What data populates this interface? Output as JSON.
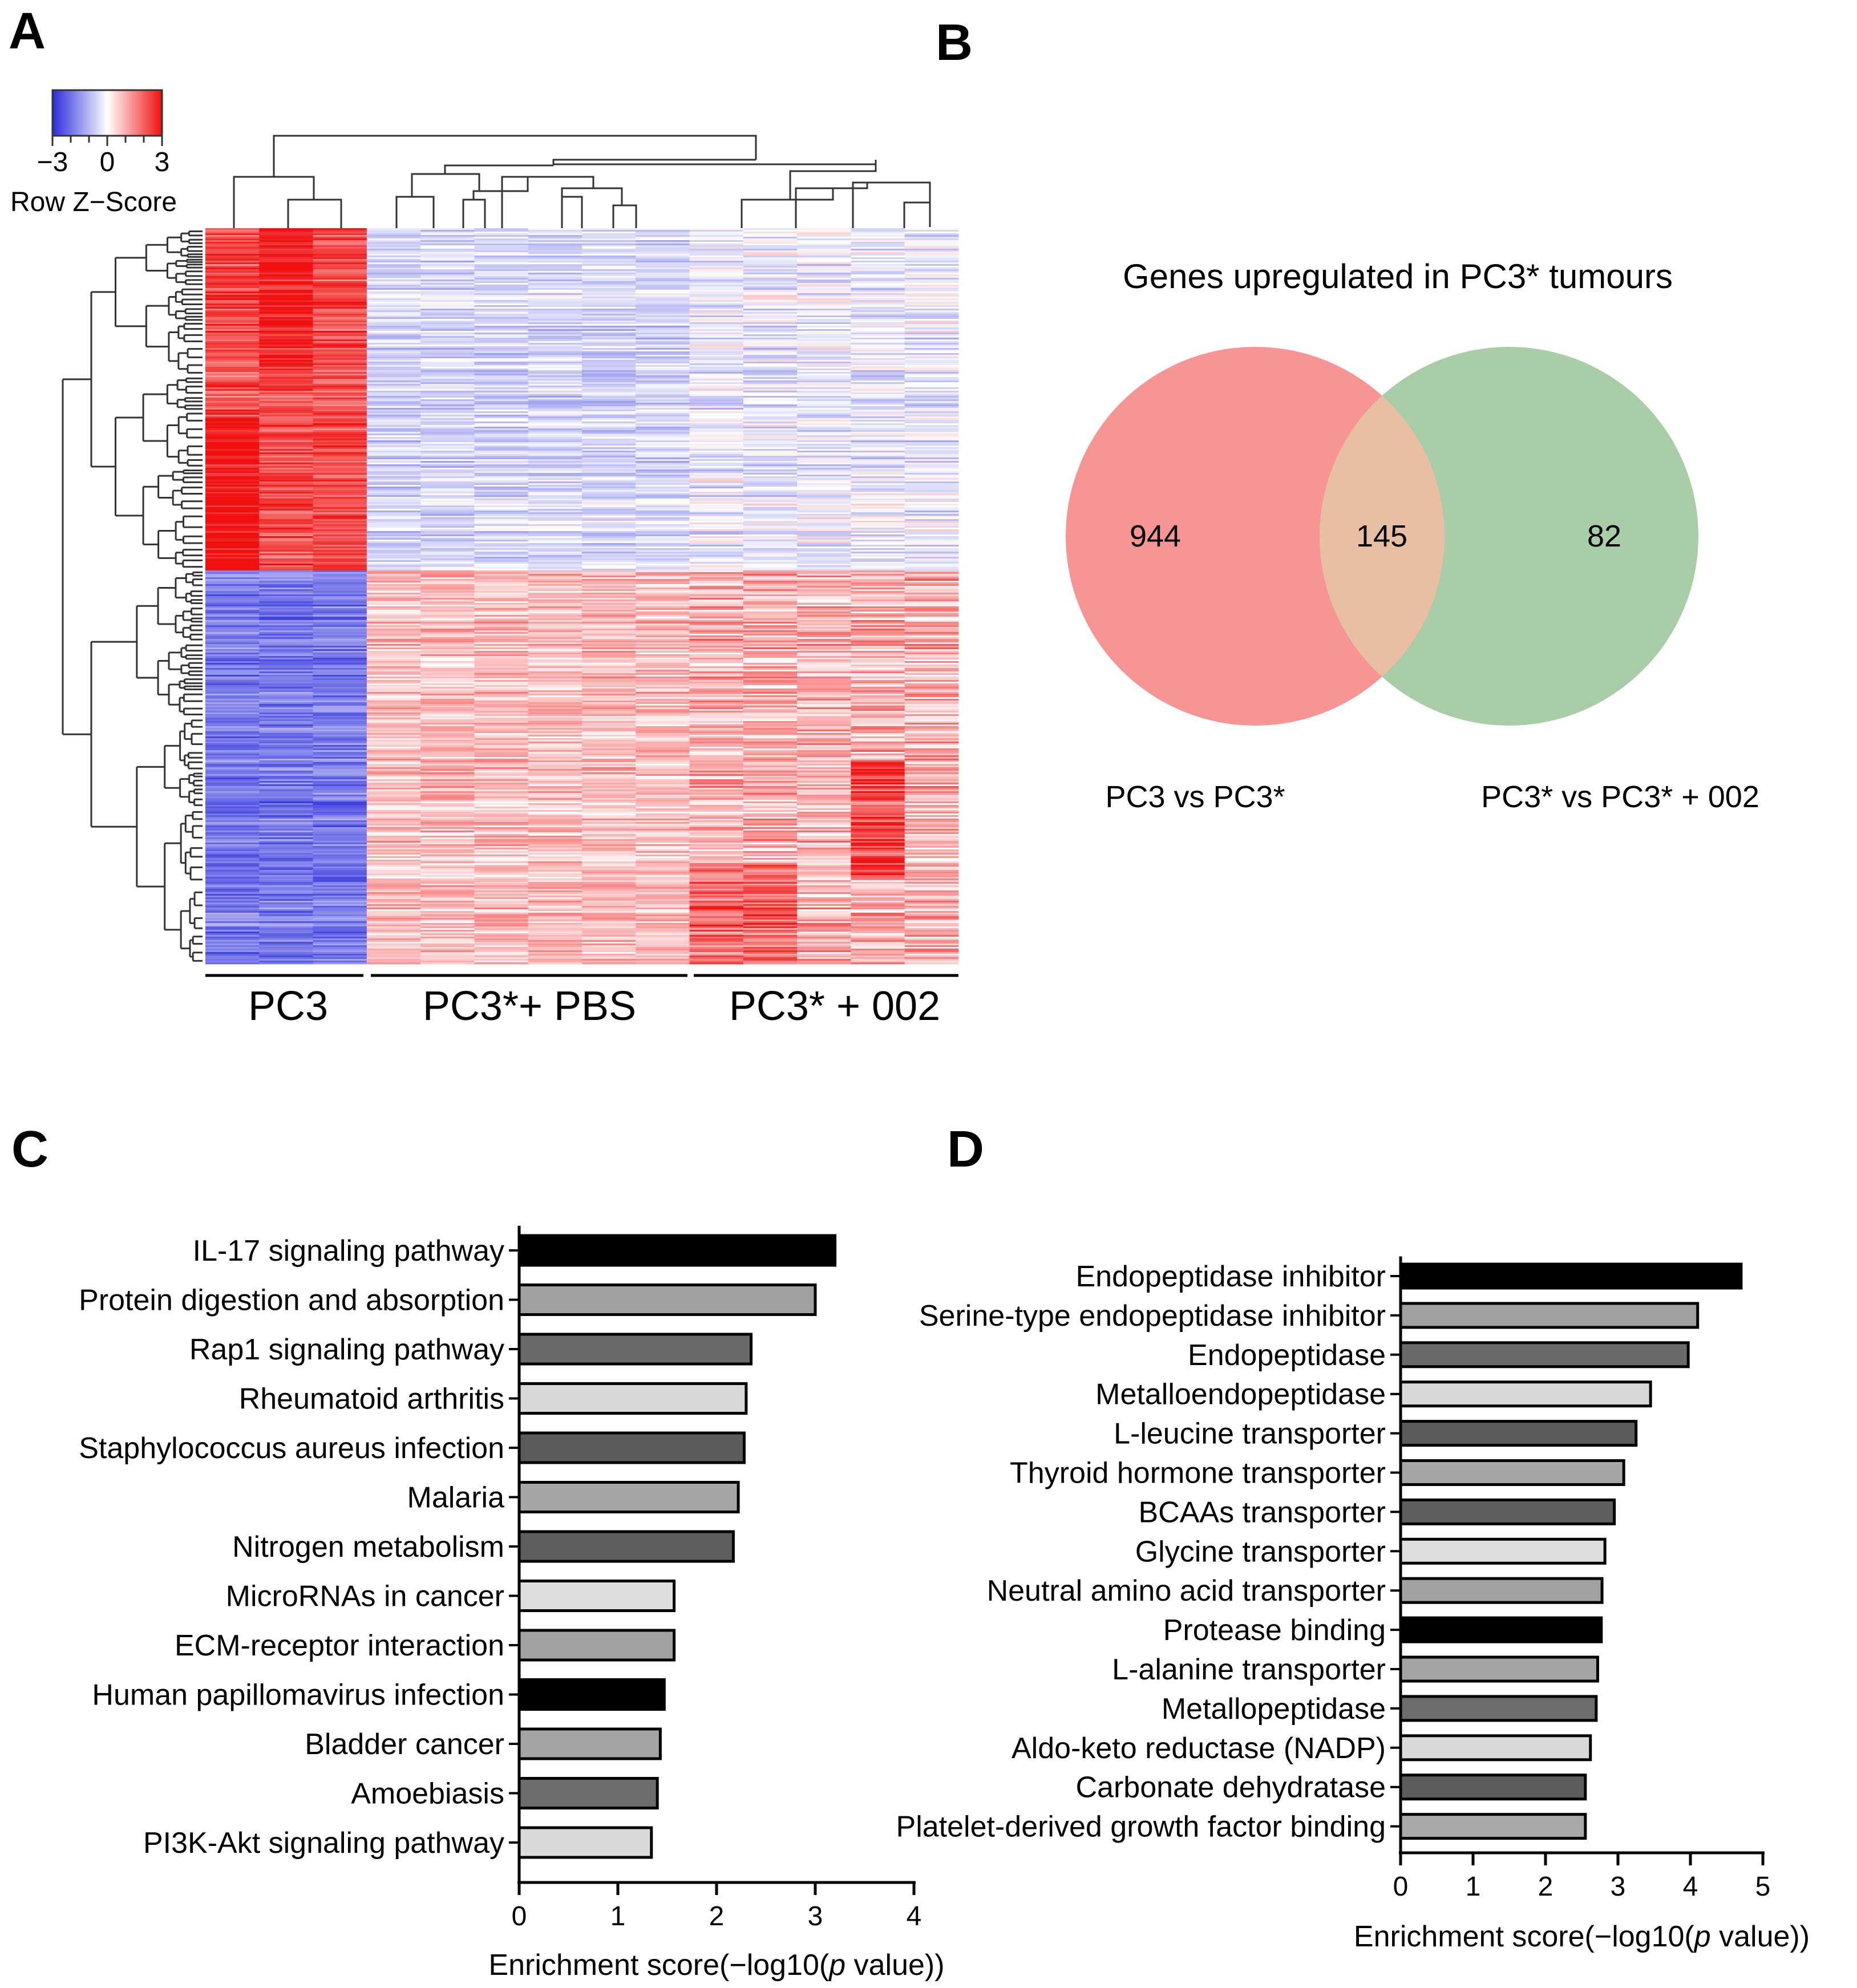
{
  "panels": {
    "a": "A",
    "b": "B",
    "c": "C",
    "d": "D"
  },
  "heatmap": {
    "legend_title": "Row Z−Score",
    "legend_min": "−3",
    "legend_mid": "0",
    "legend_max": "3",
    "scale_min": -3,
    "scale_max": 3,
    "colors": {
      "low": "#2b2bdc",
      "mid": "#ffffff",
      "high": "#f01010"
    },
    "groups": [
      {
        "label": "PC3",
        "columns": 3
      },
      {
        "label": "PC3*+ PBS",
        "columns": 6
      },
      {
        "label": "PC3* + 002",
        "columns": 5
      }
    ]
  },
  "venn": {
    "title": "Genes upregulated in PC3* tumours",
    "left_only": "944",
    "overlap": "145",
    "right_only": "82",
    "left_label": "PC3 vs PC3*",
    "right_label": "PC3* vs PC3* + 002",
    "colors": {
      "left": "#f79494",
      "right": "#a9cda6",
      "overlap": "#e9bfa4"
    }
  },
  "chart_data": [
    {
      "type": "bar",
      "orientation": "horizontal",
      "panel": "C",
      "categories": [
        "IL-17 signaling pathway",
        "Protein digestion and absorption",
        "Rap1 signaling pathway",
        "Rheumatoid arthritis",
        "Staphylococcus aureus infection",
        "Malaria",
        "Nitrogen metabolism",
        "MicroRNAs in cancer",
        "ECM-receptor interaction",
        "Human papillomavirus infection",
        "Bladder cancer",
        "Amoebiasis",
        "PI3K-Akt signaling pathway"
      ],
      "values": [
        3.2,
        3.0,
        2.35,
        2.3,
        2.28,
        2.22,
        2.17,
        1.57,
        1.57,
        1.47,
        1.43,
        1.4,
        1.34
      ],
      "bar_colors": [
        "#000000",
        "#a0a0a0",
        "#6a6a6a",
        "#d8d8d8",
        "#5a5a5a",
        "#a6a6a6",
        "#5e5e5e",
        "#dedede",
        "#a2a2a2",
        "#000000",
        "#a4a4a4",
        "#6c6c6c",
        "#dadada"
      ],
      "xlim": [
        0,
        4
      ],
      "xticks": [
        "0",
        "1",
        "2",
        "3",
        "4"
      ],
      "xlabel": "Enrichment score(−log10(p value))",
      "xlabel_pre": "Enrichment score(−log10(",
      "xlabel_italic": "p",
      "xlabel_post": " value))"
    },
    {
      "type": "bar",
      "orientation": "horizontal",
      "panel": "D",
      "categories": [
        "Endopeptidase inhibitor",
        "Serine-type endopeptidase inhibitor",
        "Endopeptidase",
        "Metalloendopeptidase",
        "L-leucine transporter",
        "Thyroid hormone transporter",
        "BCAAs transporter",
        "Glycine transporter",
        "Neutral amino acid transporter",
        "Protease binding",
        "L-alanine transporter",
        "Metallopeptidase",
        "Aldo-keto reductase (NADP)",
        "Carbonate dehydratase",
        "Platelet-derived growth factor binding"
      ],
      "values": [
        4.7,
        4.1,
        3.97,
        3.45,
        3.25,
        3.08,
        2.95,
        2.82,
        2.78,
        2.77,
        2.72,
        2.7,
        2.62,
        2.55,
        2.55
      ],
      "bar_colors": [
        "#000000",
        "#a0a0a0",
        "#6a6a6a",
        "#d8d8d8",
        "#5a5a5a",
        "#a6a6a6",
        "#5e5e5e",
        "#dedede",
        "#a2a2a2",
        "#000000",
        "#a4a4a4",
        "#6c6c6c",
        "#dadada",
        "#5c5c5c",
        "#a8a8a8"
      ],
      "xlim": [
        0,
        5
      ],
      "xticks": [
        "0",
        "1",
        "2",
        "3",
        "4",
        "5"
      ],
      "xlabel": "Enrichment score(−log10(p value))",
      "xlabel_pre": "Enrichment score(−log10(",
      "xlabel_italic": "p",
      "xlabel_post": " value))"
    }
  ]
}
